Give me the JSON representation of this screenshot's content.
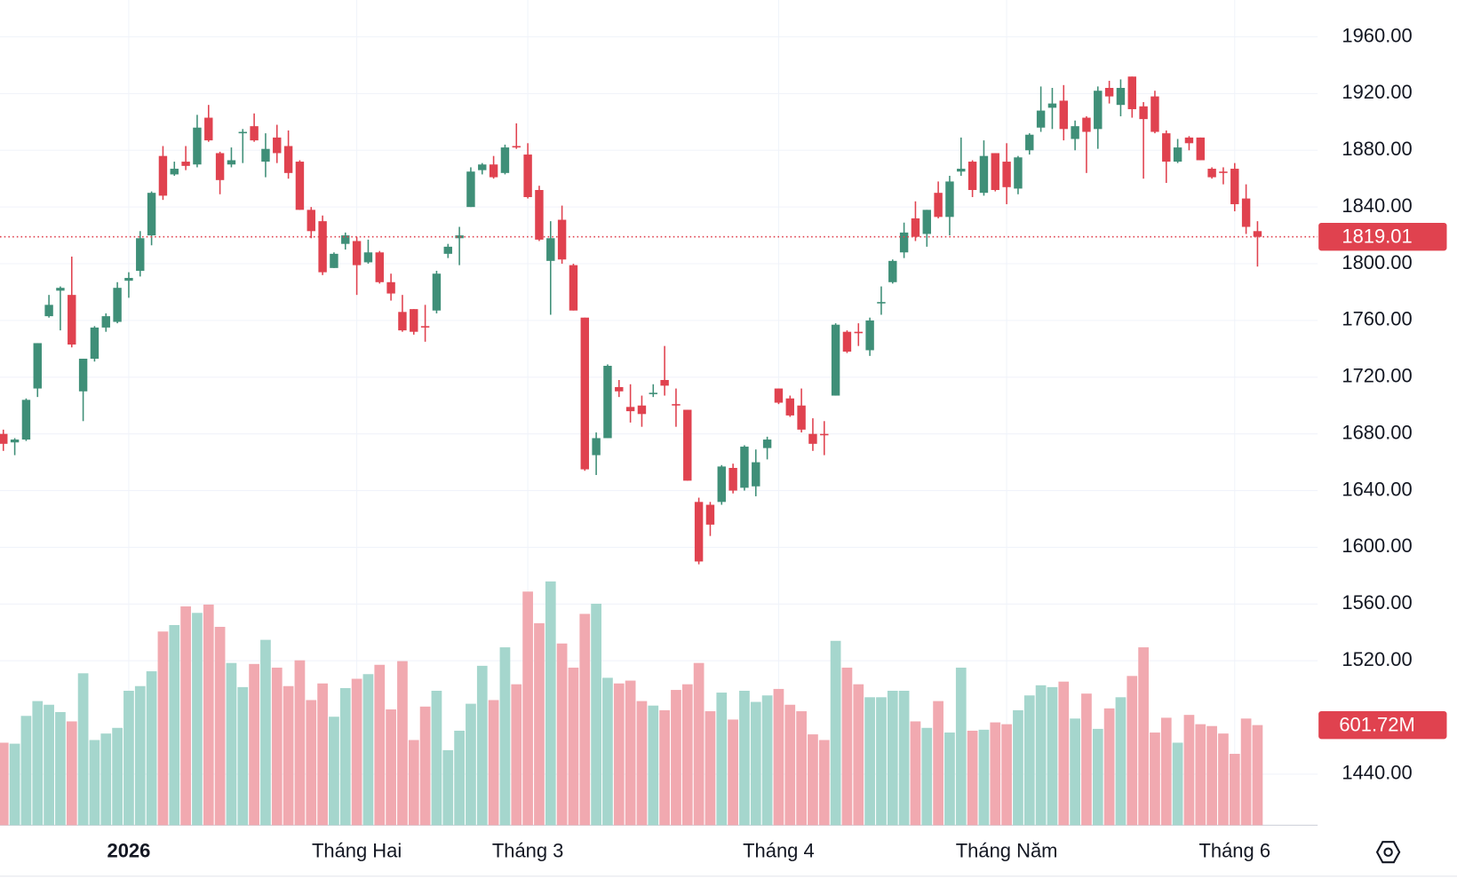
{
  "chart_data": {
    "type": "candlestick",
    "categories": [
      null,
      null,
      null,
      null,
      null,
      null,
      null,
      null,
      null,
      null,
      null,
      "2026",
      null,
      null,
      null,
      null,
      null,
      null,
      null,
      null,
      null,
      null,
      null,
      null,
      null,
      null,
      null,
      null,
      null,
      null,
      null,
      "Tháng Hai",
      null,
      null,
      null,
      null,
      null,
      null,
      null,
      null,
      null,
      null,
      null,
      null,
      null,
      null,
      "Tháng 3",
      null,
      null,
      null,
      null,
      null,
      null,
      null,
      null,
      null,
      null,
      null,
      null,
      null,
      null,
      null,
      null,
      null,
      null,
      null,
      null,
      null,
      "Tháng 4",
      null,
      null,
      null,
      null,
      null,
      null,
      null,
      null,
      null,
      null,
      null,
      null,
      null,
      null,
      null,
      null,
      null,
      null,
      null,
      "Tháng Năm",
      null,
      null,
      null,
      null,
      null,
      null,
      null,
      null,
      null,
      null,
      null,
      null,
      null,
      null,
      null,
      null,
      null,
      null,
      null,
      "Tháng 6",
      null,
      null
    ],
    "open": [
      1680,
      1674,
      1676,
      1712,
      1763,
      1781,
      1778,
      1710,
      1733,
      1755,
      1759,
      1788,
      1795,
      1820,
      1876,
      1863,
      1872,
      1870,
      1903,
      1878,
      1870,
      1892,
      1897,
      1872,
      1889,
      1883,
      1872,
      1838,
      1830,
      1797,
      1814,
      1816,
      1801,
      1808,
      1787,
      1766,
      1768,
      1756,
      1767,
      1807,
      1818,
      1840,
      1866,
      1870,
      1864,
      1883,
      1877,
      1852,
      1802,
      1831,
      1799,
      1762,
      1665,
      1677,
      1713,
      1699,
      1700,
      1708,
      1718,
      1701,
      1697,
      1632,
      1630,
      1632,
      1656,
      1642,
      1643,
      1670,
      1712,
      1705,
      1700,
      1680,
      1680,
      1707,
      1752,
      1752,
      1739,
      1772,
      1787,
      1808,
      1832,
      1821,
      1850,
      1833,
      1865,
      1872,
      1850,
      1878,
      1872,
      1853,
      1880,
      1896,
      1910,
      1915,
      1888,
      1903,
      1895,
      1924,
      1912,
      1932,
      1911,
      1918,
      1892,
      1872,
      1889,
      1889,
      1867,
      1865,
      1867,
      1846,
      1823
    ],
    "high": [
      1683,
      1677,
      1705,
      1744,
      1778,
      1784,
      1805,
      1733,
      1756,
      1765,
      1787,
      1794,
      1823,
      1851,
      1883,
      1872,
      1883,
      1905,
      1912,
      1879,
      1882,
      1895,
      1906,
      1892,
      1898,
      1894,
      1873,
      1840,
      1834,
      1808,
      1822,
      1819,
      1817,
      1809,
      1793,
      1778,
      1768,
      1771,
      1795,
      1814,
      1826,
      1868,
      1871,
      1876,
      1884,
      1899,
      1885,
      1855,
      1830,
      1841,
      1800,
      1762,
      1681,
      1729,
      1718,
      1715,
      1707,
      1715,
      1742,
      1712,
      1697,
      1635,
      1632,
      1658,
      1659,
      1672,
      1669,
      1678,
      1712,
      1707,
      1712,
      1691,
      1689,
      1758,
      1753,
      1758,
      1762,
      1784,
      1803,
      1829,
      1844,
      1838,
      1858,
      1862,
      1889,
      1873,
      1887,
      1878,
      1885,
      1876,
      1892,
      1925,
      1924,
      1926,
      1901,
      1904,
      1925,
      1929,
      1930,
      1932,
      1914,
      1922,
      1894,
      1888,
      1890,
      1889,
      1868,
      1868,
      1871,
      1856,
      1830
    ],
    "low": [
      1668,
      1665,
      1675,
      1706,
      1762,
      1753,
      1741,
      1689,
      1731,
      1752,
      1758,
      1776,
      1791,
      1813,
      1845,
      1862,
      1866,
      1868,
      1886,
      1849,
      1868,
      1871,
      1886,
      1861,
      1871,
      1860,
      1838,
      1818,
      1792,
      1797,
      1810,
      1778,
      1800,
      1786,
      1774,
      1752,
      1750,
      1745,
      1765,
      1804,
      1799,
      1840,
      1863,
      1860,
      1863,
      1881,
      1846,
      1816,
      1764,
      1800,
      1767,
      1654,
      1651,
      1677,
      1706,
      1688,
      1685,
      1706,
      1707,
      1685,
      1647,
      1588,
      1608,
      1630,
      1638,
      1640,
      1636,
      1662,
      1701,
      1692,
      1681,
      1668,
      1665,
      1707,
      1737,
      1742,
      1735,
      1764,
      1786,
      1804,
      1816,
      1812,
      1832,
      1820,
      1862,
      1847,
      1848,
      1851,
      1842,
      1849,
      1877,
      1893,
      1895,
      1887,
      1880,
      1864,
      1881,
      1913,
      1904,
      1903,
      1860,
      1892,
      1857,
      1871,
      1880,
      1873,
      1860,
      1856,
      1837,
      1821,
      1798
    ],
    "close": [
      1673,
      1676,
      1704,
      1744,
      1771,
      1783,
      1743,
      1733,
      1755,
      1763,
      1783,
      1790,
      1818,
      1850,
      1848,
      1867,
      1869,
      1896,
      1887,
      1859,
      1873,
      1893,
      1887,
      1881,
      1878,
      1864,
      1838,
      1823,
      1794,
      1807,
      1820,
      1799,
      1808,
      1787,
      1779,
      1753,
      1752,
      1755,
      1793,
      1812,
      1820,
      1865,
      1870,
      1861,
      1882,
      1882,
      1847,
      1817,
      1818,
      1803,
      1767,
      1655,
      1677,
      1728,
      1710,
      1696,
      1694,
      1709,
      1714,
      1700,
      1647,
      1590,
      1616,
      1657,
      1640,
      1671,
      1660,
      1676,
      1702,
      1693,
      1683,
      1673,
      1679,
      1757,
      1738,
      1751,
      1760,
      1773,
      1802,
      1822,
      1819,
      1838,
      1833,
      1858,
      1867,
      1852,
      1876,
      1852,
      1854,
      1875,
      1891,
      1908,
      1913,
      1895,
      1897,
      1893,
      1922,
      1918,
      1924,
      1909,
      1902,
      1893,
      1872,
      1882,
      1885,
      1873,
      1861,
      1864,
      1842,
      1826,
      1819.01
    ],
    "volume": [
      496,
      490,
      657,
      746,
      724,
      680,
      624,
      913,
      512,
      551,
      585,
      808,
      836,
      925,
      1164,
      1203,
      1315,
      1276,
      1326,
      1192,
      975,
      830,
      969,
      1114,
      947,
      836,
      991,
      752,
      852,
      652,
      824,
      880,
      908,
      964,
      696,
      986,
      512,
      713,
      808,
      451,
      568,
      730,
      958,
      752,
      1069,
      847,
      1404,
      1214,
      1465,
      1092,
      947,
      1270,
      1331,
      886,
      852,
      869,
      746,
      719,
      691,
      813,
      847,
      975,
      685,
      797,
      635,
      808,
      741,
      780,
      819,
      724,
      685,
      546,
      512,
      1108,
      947,
      847,
      769,
      769,
      808,
      808,
      624,
      585,
      746,
      557,
      947,
      568,
      574,
      618,
      607,
      691,
      780,
      841,
      830,
      863,
      641,
      791,
      579,
      702,
      769,
      897,
      1069,
      557,
      646,
      496,
      663,
      607,
      596,
      551,
      429,
      641,
      601.72
    ],
    "last_close_label": "1819.01",
    "last_volume_label": "601.72M",
    "ylim": [
      1404,
      1986
    ],
    "yticks": [
      {
        "value": 1440,
        "label": "1440.00"
      },
      {
        "value": 1520,
        "label": "1520.00"
      },
      {
        "value": 1560,
        "label": "1560.00"
      },
      {
        "value": 1600,
        "label": "1600.00"
      },
      {
        "value": 1640,
        "label": "1640.00"
      },
      {
        "value": 1680,
        "label": "1680.00"
      },
      {
        "value": 1720,
        "label": "1720.00"
      },
      {
        "value": 1760,
        "label": "1760.00"
      },
      {
        "value": 1800,
        "label": "1800.00"
      },
      {
        "value": 1840,
        "label": "1840.00"
      },
      {
        "value": 1880,
        "label": "1880.00"
      },
      {
        "value": 1920,
        "label": "1920.00"
      },
      {
        "value": 1960,
        "label": "1960.00"
      }
    ],
    "volume_lim": [
      0,
      4959
    ],
    "up_color": "#3f8f78",
    "down_color": "#e0424f",
    "volume_up_color": "#a5d6cd",
    "volume_down_color": "#f1a9b0",
    "grid": true
  }
}
